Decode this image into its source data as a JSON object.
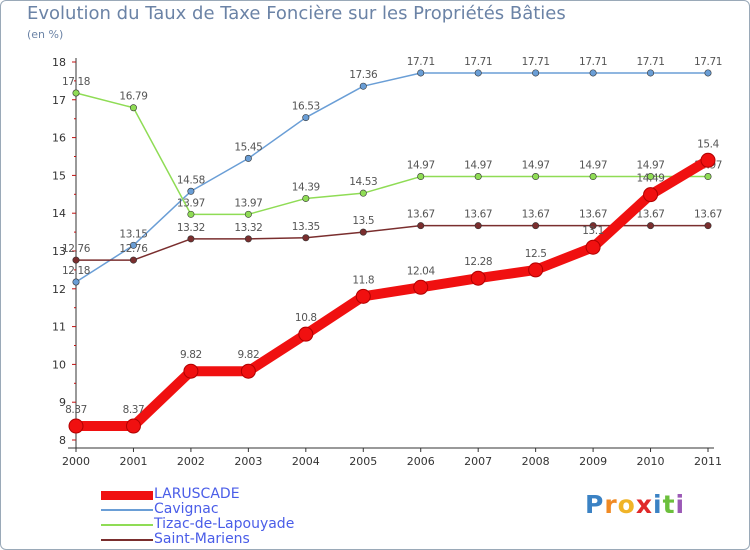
{
  "chart_data": {
    "type": "line",
    "title": "Evolution du Taux de Taxe Foncière sur les Propriétés Bâties",
    "unit_label": "(en %)",
    "x": [
      "2000",
      "2001",
      "2002",
      "2003",
      "2004",
      "2005",
      "2006",
      "2007",
      "2008",
      "2009",
      "2010",
      "2011"
    ],
    "ylim": [
      8,
      18
    ],
    "yticks": [
      "8",
      "9",
      "10",
      "11",
      "12",
      "13",
      "14",
      "15",
      "16",
      "17",
      "18"
    ],
    "grid": false,
    "legend_position": "bottom-left",
    "series": [
      {
        "name": "LARUSCADE",
        "color": "#f01010",
        "values": [
          8.37,
          8.37,
          9.82,
          9.82,
          10.8,
          11.8,
          12.04,
          12.28,
          12.5,
          13.1,
          14.49,
          15.4
        ],
        "labels": [
          "8.37",
          "8.37",
          "9.82",
          "9.82",
          "10.8",
          "11.8",
          "12.04",
          "12.28",
          "12.5",
          "13.1",
          "14.49",
          "15.4"
        ]
      },
      {
        "name": "Cavignac",
        "color": "#6a9ed6",
        "values": [
          12.18,
          13.15,
          14.58,
          15.45,
          16.53,
          17.36,
          17.71,
          17.71,
          17.71,
          17.71,
          17.71,
          17.71
        ],
        "labels": [
          "12.18",
          "13.15",
          "14.58",
          "15.45",
          "16.53",
          "17.36",
          "17.71",
          "17.71",
          "17.71",
          "17.71",
          "17.71",
          "17.71"
        ]
      },
      {
        "name": "Tizac-de-Lapouyade",
        "color": "#8fdc55",
        "values": [
          17.18,
          16.79,
          13.97,
          13.97,
          14.39,
          14.53,
          14.97,
          14.97,
          14.97,
          14.97,
          14.97,
          14.97
        ],
        "labels": [
          "17.18",
          "16.79",
          "13.97",
          "13.97",
          "14.39",
          "14.53",
          "14.97",
          "14.97",
          "14.97",
          "14.97",
          "14.97",
          "14.97"
        ]
      },
      {
        "name": "Saint-Mariens",
        "color": "#7a2e2e",
        "values": [
          12.76,
          12.76,
          13.32,
          13.32,
          13.35,
          13.5,
          13.67,
          13.67,
          13.67,
          13.67,
          13.67,
          13.67
        ],
        "labels": [
          "12.76",
          "12.76",
          "13.32",
          "13.32",
          "13.35",
          "13.5",
          "13.67",
          "13.67",
          "13.67",
          "13.67",
          "13.67",
          "13.67"
        ]
      }
    ]
  },
  "logo": {
    "letters": [
      "P",
      "r",
      "o",
      "x",
      "i",
      "t",
      "i"
    ],
    "colors": [
      "#3b82c4",
      "#f08a24",
      "#f0b428",
      "#e02828",
      "#3b82c4",
      "#6cbf3c",
      "#9b59b6"
    ]
  }
}
